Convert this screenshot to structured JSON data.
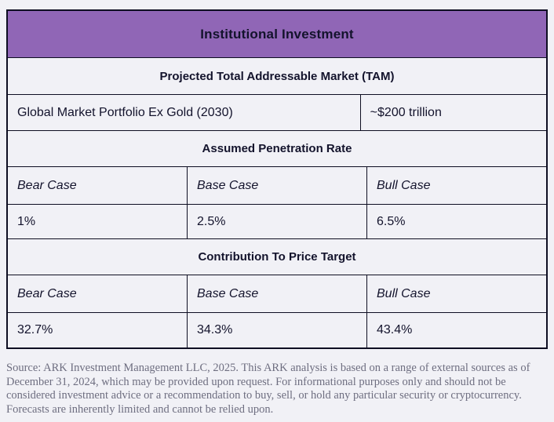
{
  "colors": {
    "purple": "#9066b6",
    "bg": "#f1f1f6",
    "border": "#0e0e22",
    "text": "#13132c",
    "footer-text": "#6e6e80"
  },
  "table": {
    "title": "Institutional Investment",
    "tam": {
      "header": "Projected Total Addressable Market (TAM)",
      "row_label": "Global Market Portfolio Ex Gold (2030)",
      "row_value": "~$200 trillion"
    },
    "penetration": {
      "header": "Assumed Penetration Rate",
      "labels": [
        "Bear Case",
        "Base Case",
        "Bull Case"
      ],
      "values": [
        "1%",
        "2.5%",
        "6.5%"
      ]
    },
    "contribution": {
      "header": "Contribution To Price Target",
      "labels": [
        "Bear Case",
        "Base Case",
        "Bull Case"
      ],
      "values": [
        "32.7%",
        "34.3%",
        "43.4%"
      ]
    }
  },
  "footer": {
    "source_text": "Source: ARK Investment Management LLC, 2025. This ARK analysis is based on a range of external sources as of December 31, 2024, which may be provided upon request. For informational purposes only and should not be considered investment advice or a recommendation to buy, sell, or hold any particular security or cryptocurrency. Forecasts are inherently limited and cannot be relied upon."
  }
}
